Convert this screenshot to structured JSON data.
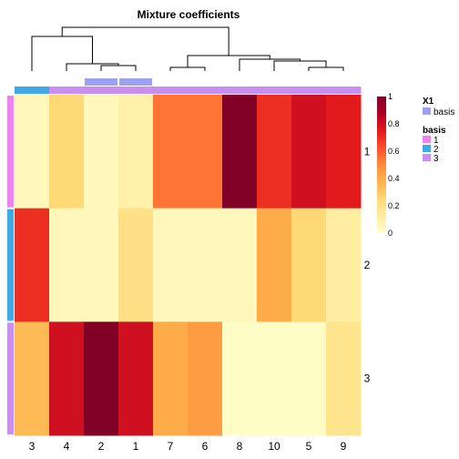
{
  "chart_data": {
    "type": "heatmap",
    "title": "Mixture coefficients",
    "columns": [
      "3",
      "4",
      "2",
      "1",
      "7",
      "6",
      "8",
      "10",
      "5",
      "9"
    ],
    "rows": [
      "1",
      "2",
      "3"
    ],
    "values": [
      [
        0.05,
        0.25,
        0.05,
        0.1,
        0.55,
        0.55,
        1.0,
        0.7,
        0.8,
        0.75
      ],
      [
        0.7,
        0.05,
        0.05,
        0.2,
        0.05,
        0.05,
        0.05,
        0.4,
        0.25,
        0.12
      ],
      [
        0.35,
        0.8,
        1.0,
        0.8,
        0.4,
        0.45,
        0.02,
        0.02,
        0.02,
        0.18
      ]
    ],
    "scale": {
      "min": 0,
      "max": 1,
      "ticks": [
        "0",
        "0.2",
        "0.4",
        "0.6",
        "0.8",
        "1"
      ]
    },
    "column_annotation_basis": [
      "2",
      "3",
      "3",
      "3",
      "3",
      "3",
      "3",
      "3",
      "3",
      "3"
    ],
    "column_annotation_x1": [
      "",
      "",
      "basis",
      "basis",
      "",
      "",
      "",
      "",
      "",
      ""
    ],
    "row_annotation_basis": [
      "1",
      "2",
      "3"
    ],
    "legend": {
      "x1_title": "X1",
      "x1_items": [
        {
          "label": "basis",
          "color": "#a0a0f0"
        }
      ],
      "basis_title": "basis",
      "basis_items": [
        {
          "label": "1",
          "color": "#ee82ee"
        },
        {
          "label": "2",
          "color": "#3fa9e8"
        },
        {
          "label": "3",
          "color": "#c98ef0"
        }
      ]
    },
    "colors": {
      "gradient": [
        "#ffffcc",
        "#ffeda0",
        "#fed976",
        "#feb24c",
        "#fd8d3c",
        "#fc4e2a",
        "#e31a1c",
        "#b10026",
        "#800026"
      ]
    },
    "legend_placement": "right"
  }
}
